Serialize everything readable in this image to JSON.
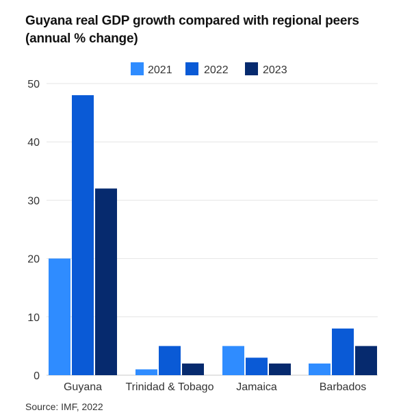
{
  "title_line1": "Guyana real GDP growth compared with regional peers",
  "title_line2": "(annual % change)",
  "source": "Source: IMF, 2022",
  "chart_data": {
    "type": "bar",
    "categories": [
      "Guyana",
      "Trinidad & Tobago",
      "Jamaica",
      "Barbados"
    ],
    "series": [
      {
        "name": "2021",
        "values": [
          20,
          1,
          5,
          2
        ],
        "color": "#2f8cff"
      },
      {
        "name": "2022",
        "values": [
          48,
          5,
          3,
          8
        ],
        "color": "#0a5ad6"
      },
      {
        "name": "2023",
        "values": [
          32,
          2,
          2,
          5
        ],
        "color": "#062a6e"
      }
    ],
    "yticks": [
      0,
      10,
      20,
      30,
      40,
      50
    ],
    "ylim": [
      0,
      50
    ],
    "grid": true,
    "legend_position": "top-center"
  }
}
